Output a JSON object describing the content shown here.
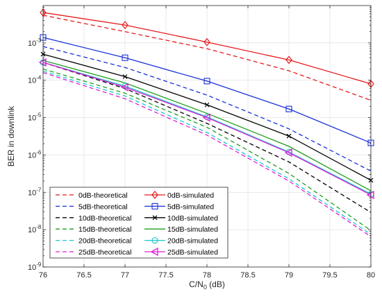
{
  "chart_data": {
    "type": "line",
    "title": "",
    "xlabel": "C/N",
    "xlabel_sub": "0",
    "xlabel_unit": " (dB)",
    "ylabel": "BER in downlink",
    "x": [
      76,
      77,
      78,
      79,
      80
    ],
    "xlim": [
      76,
      80
    ],
    "ylim": [
      1e-09,
      0.01
    ],
    "yscale": "log",
    "grid": true,
    "legend_position": "bottom-left",
    "x_ticks": [
      76,
      76.5,
      77,
      77.5,
      78,
      78.5,
      79,
      79.5,
      80
    ],
    "x_tick_labels": [
      "76",
      "76.5",
      "77",
      "77.5",
      "78",
      "78.5",
      "79",
      "79.5",
      "80"
    ],
    "y_ticks": [
      {
        "value": 1e-09,
        "base": "10",
        "exp": "-9"
      },
      {
        "value": 1e-08,
        "base": "10",
        "exp": "-8"
      },
      {
        "value": 1e-07,
        "base": "10",
        "exp": "-7"
      },
      {
        "value": 1e-06,
        "base": "10",
        "exp": "-6"
      },
      {
        "value": 1e-05,
        "base": "10",
        "exp": "-5"
      },
      {
        "value": 0.0001,
        "base": "10",
        "exp": "-4"
      },
      {
        "value": 0.001,
        "base": "10",
        "exp": "-3"
      }
    ],
    "series": [
      {
        "name": "0dB-theoretical",
        "color": "#e8191b",
        "style": "dashed",
        "marker": "none",
        "values": [
          0.0055,
          0.002,
          0.0007,
          0.00018,
          2.9e-05
        ]
      },
      {
        "name": "0dB-simulated",
        "color": "#e8191b",
        "style": "solid",
        "marker": "diamond",
        "values": [
          0.0065,
          0.003,
          0.00105,
          0.00035,
          8e-05
        ]
      },
      {
        "name": "5dB-theoretical",
        "color": "#1830d8",
        "style": "dashed",
        "marker": "none",
        "values": [
          0.0008,
          0.00022,
          4e-05,
          5e-06,
          3.7e-07
        ]
      },
      {
        "name": "5dB-simulated",
        "color": "#1830d8",
        "style": "solid",
        "marker": "square",
        "values": [
          0.0014,
          0.0004,
          9.5e-05,
          1.7e-05,
          2.1e-06
        ]
      },
      {
        "name": "10dB-theoretical",
        "color": "#000000",
        "style": "dashed",
        "marker": "none",
        "values": [
          0.0003,
          6e-05,
          7e-06,
          6.5e-07,
          2.9e-08
        ]
      },
      {
        "name": "10dB-simulated",
        "color": "#000000",
        "style": "solid",
        "marker": "x",
        "values": [
          0.0005,
          0.000125,
          2.2e-05,
          3.2e-06,
          2.1e-07
        ]
      },
      {
        "name": "15dB-theoretical",
        "color": "#1e9e1e",
        "style": "dashed",
        "marker": "none",
        "values": [
          0.0002,
          4.5e-05,
          5.5e-06,
          3.2e-07,
          9.5e-09
        ]
      },
      {
        "name": "15dB-simulated",
        "color": "#1e9e1e",
        "style": "solid",
        "marker": "none",
        "values": [
          0.00034,
          8.5e-05,
          1.3e-05,
          1.7e-06,
          1.1e-07
        ]
      },
      {
        "name": "20dB-theoretical",
        "color": "#18c8cc",
        "style": "dashed",
        "marker": "none",
        "values": [
          0.000175,
          3.8e-05,
          4e-06,
          2.3e-07,
          7.5e-09
        ]
      },
      {
        "name": "20dB-simulated",
        "color": "#18c8cc",
        "style": "solid",
        "marker": "circle",
        "values": [
          0.0003,
          7e-05,
          1.05e-05,
          1.2e-06,
          9e-08
        ]
      },
      {
        "name": "25dB-theoretical",
        "color": "#e01ed8",
        "style": "dashed",
        "marker": "none",
        "values": [
          0.00016,
          3.2e-05,
          3.4e-06,
          2e-07,
          6.5e-09
        ]
      },
      {
        "name": "25dB-simulated",
        "color": "#e01ed8",
        "style": "solid",
        "marker": "triangle-left",
        "values": [
          0.0003,
          6.5e-05,
          1e-05,
          1.15e-06,
          8.5e-08
        ]
      }
    ]
  }
}
